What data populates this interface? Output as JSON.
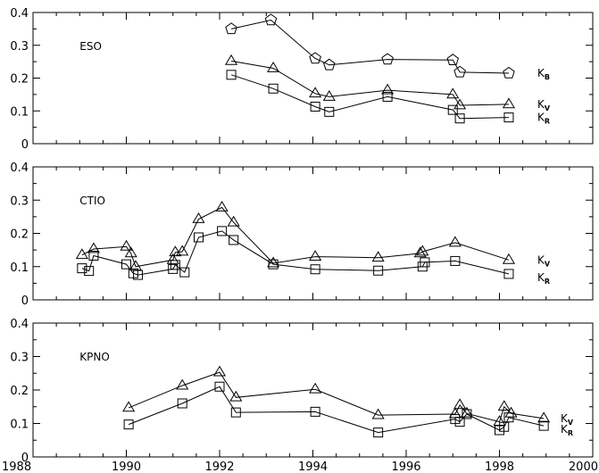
{
  "chart_data": [
    {
      "type": "line",
      "panel_label": "ESO",
      "ylim": [
        0,
        0.4
      ],
      "yticks": [
        "0",
        "0.1",
        "0.2",
        "0.3",
        "0.4"
      ],
      "series": [
        {
          "name": "K",
          "subscript": "B",
          "marker": "pentagon",
          "points": [
            [
              1992.25,
              0.35
            ],
            [
              1993.1,
              0.377
            ],
            [
              1994.05,
              0.26
            ],
            [
              1994.35,
              0.24
            ],
            [
              1995.6,
              0.257
            ],
            [
              1997.0,
              0.255
            ],
            [
              1997.15,
              0.218
            ],
            [
              1998.2,
              0.215
            ]
          ]
        },
        {
          "name": "K",
          "subscript": "V",
          "marker": "triangle",
          "points": [
            [
              1992.25,
              0.252
            ],
            [
              1993.15,
              0.23
            ],
            [
              1994.05,
              0.153
            ],
            [
              1994.35,
              0.143
            ],
            [
              1995.6,
              0.163
            ],
            [
              1997.0,
              0.15
            ],
            [
              1997.15,
              0.117
            ],
            [
              1998.2,
              0.12
            ]
          ]
        },
        {
          "name": "K",
          "subscript": "R",
          "marker": "square",
          "points": [
            [
              1992.25,
              0.21
            ],
            [
              1993.15,
              0.168
            ],
            [
              1994.05,
              0.113
            ],
            [
              1994.35,
              0.097
            ],
            [
              1995.6,
              0.143
            ],
            [
              1997.0,
              0.103
            ],
            [
              1997.15,
              0.077
            ],
            [
              1998.2,
              0.08
            ]
          ]
        }
      ]
    },
    {
      "type": "line",
      "panel_label": "CTIO",
      "ylim": [
        0,
        0.4
      ],
      "yticks": [
        "0",
        "0.1",
        "0.2",
        "0.3",
        "0.4"
      ],
      "series": [
        {
          "name": "K",
          "subscript": "V",
          "marker": "triangle",
          "points": [
            [
              1989.05,
              0.135
            ],
            [
              1989.3,
              0.153
            ],
            [
              1990.0,
              0.16
            ],
            [
              1990.1,
              0.14
            ],
            [
              1990.2,
              0.1
            ],
            [
              1991.0,
              0.12
            ],
            [
              1991.05,
              0.143
            ],
            [
              1991.2,
              0.145
            ],
            [
              1991.55,
              0.243
            ],
            [
              1992.05,
              0.278
            ],
            [
              1992.3,
              0.233
            ],
            [
              1993.15,
              0.11
            ],
            [
              1994.05,
              0.13
            ],
            [
              1995.4,
              0.127
            ],
            [
              1996.3,
              0.14
            ],
            [
              1996.35,
              0.145
            ],
            [
              1997.05,
              0.172
            ],
            [
              1998.2,
              0.12
            ]
          ]
        },
        {
          "name": "K",
          "subscript": "R",
          "marker": "square",
          "points": [
            [
              1989.05,
              0.095
            ],
            [
              1989.2,
              0.087
            ],
            [
              1989.3,
              0.133
            ],
            [
              1990.0,
              0.107
            ],
            [
              1990.15,
              0.08
            ],
            [
              1990.25,
              0.075
            ],
            [
              1991.0,
              0.093
            ],
            [
              1991.05,
              0.105
            ],
            [
              1991.25,
              0.083
            ],
            [
              1991.55,
              0.188
            ],
            [
              1992.05,
              0.207
            ],
            [
              1992.3,
              0.18
            ],
            [
              1993.15,
              0.107
            ],
            [
              1994.05,
              0.092
            ],
            [
              1995.4,
              0.088
            ],
            [
              1996.35,
              0.1
            ],
            [
              1996.4,
              0.113
            ],
            [
              1997.05,
              0.117
            ],
            [
              1998.2,
              0.078
            ]
          ]
        }
      ]
    },
    {
      "type": "line",
      "panel_label": "KPNO",
      "ylim": [
        0,
        0.4
      ],
      "yticks": [
        "0",
        "0.1",
        "0.2",
        "0.3",
        "0.4"
      ],
      "series": [
        {
          "name": "K",
          "subscript": "V",
          "marker": "triangle",
          "points": [
            [
              1990.05,
              0.147
            ],
            [
              1991.2,
              0.213
            ],
            [
              1992.0,
              0.253
            ],
            [
              1992.35,
              0.178
            ],
            [
              1994.05,
              0.202
            ],
            [
              1995.4,
              0.125
            ],
            [
              1997.05,
              0.128
            ],
            [
              1997.15,
              0.155
            ],
            [
              1997.3,
              0.13
            ],
            [
              1998.0,
              0.105
            ],
            [
              1998.1,
              0.15
            ],
            [
              1998.25,
              0.13
            ],
            [
              1998.95,
              0.115
            ]
          ]
        },
        {
          "name": "K",
          "subscript": "R",
          "marker": "square",
          "points": [
            [
              1990.05,
              0.097
            ],
            [
              1991.2,
              0.16
            ],
            [
              1992.0,
              0.21
            ],
            [
              1992.35,
              0.133
            ],
            [
              1994.05,
              0.135
            ],
            [
              1995.4,
              0.073
            ],
            [
              1997.05,
              0.113
            ],
            [
              1997.15,
              0.105
            ],
            [
              1997.3,
              0.128
            ],
            [
              1998.0,
              0.08
            ],
            [
              1998.1,
              0.09
            ],
            [
              1998.2,
              0.118
            ],
            [
              1998.95,
              0.093
            ]
          ]
        }
      ]
    }
  ],
  "x_axis": {
    "xlim": [
      1988,
      2000
    ],
    "ticks": [
      "1988",
      "1990",
      "1992",
      "1994",
      "1996",
      "1998",
      "2000"
    ]
  }
}
